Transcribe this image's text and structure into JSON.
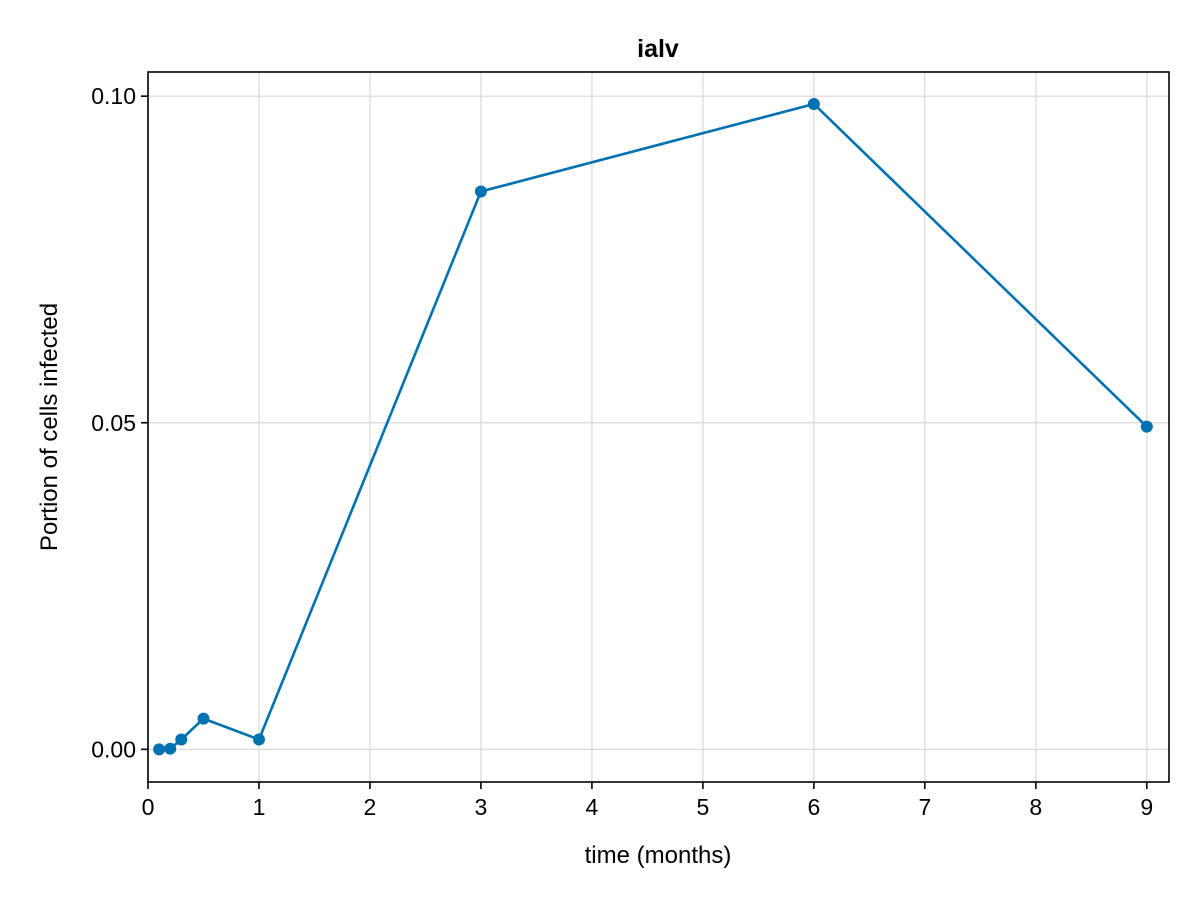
{
  "chart_data": {
    "type": "line",
    "title": "ialv",
    "xlabel": "time (months)",
    "ylabel": "Portion of cells infected",
    "xlim": [
      0,
      9.2
    ],
    "ylim": [
      -0.005,
      0.1037
    ],
    "x_ticks": [
      0,
      1,
      2,
      3,
      4,
      5,
      6,
      7,
      8,
      9
    ],
    "x_tick_labels": [
      "0",
      "1",
      "2",
      "3",
      "4",
      "5",
      "6",
      "7",
      "8",
      "9"
    ],
    "y_ticks": [
      0.0,
      0.05,
      0.1
    ],
    "y_tick_labels": [
      "0.00",
      "0.05",
      "0.10"
    ],
    "grid": true,
    "legend": "none",
    "series": [
      {
        "color": "#0072b2",
        "markers": true,
        "x": [
          0.1,
          0.2,
          0.3,
          0.5,
          1,
          3,
          6,
          9
        ],
        "y": [
          0.0,
          0.0001,
          0.0015,
          0.0047,
          0.0015,
          0.0854,
          0.0988,
          0.0494
        ]
      }
    ]
  }
}
